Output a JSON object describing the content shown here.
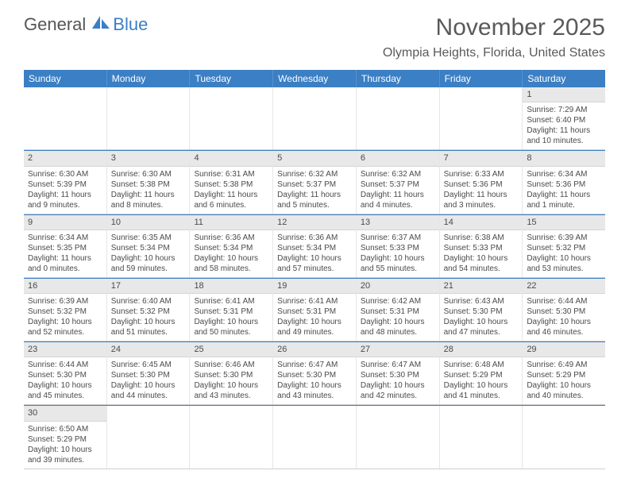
{
  "logo": {
    "word1": "General",
    "word2": "Blue"
  },
  "title": "November 2025",
  "location": "Olympia Heights, Florida, United States",
  "weekdays": [
    "Sunday",
    "Monday",
    "Tuesday",
    "Wednesday",
    "Thursday",
    "Friday",
    "Saturday"
  ],
  "colors": {
    "header_bar": "#3b7fc4",
    "daynum_bg": "#e8e8e8",
    "row_sep": "#3b7fc4",
    "text": "#4a4a4a"
  },
  "weeks": [
    [
      null,
      null,
      null,
      null,
      null,
      null,
      {
        "n": "1",
        "sunrise": "Sunrise: 7:29 AM",
        "sunset": "Sunset: 6:40 PM",
        "daylight": "Daylight: 11 hours and 10 minutes."
      }
    ],
    [
      {
        "n": "2",
        "sunrise": "Sunrise: 6:30 AM",
        "sunset": "Sunset: 5:39 PM",
        "daylight": "Daylight: 11 hours and 9 minutes."
      },
      {
        "n": "3",
        "sunrise": "Sunrise: 6:30 AM",
        "sunset": "Sunset: 5:38 PM",
        "daylight": "Daylight: 11 hours and 8 minutes."
      },
      {
        "n": "4",
        "sunrise": "Sunrise: 6:31 AM",
        "sunset": "Sunset: 5:38 PM",
        "daylight": "Daylight: 11 hours and 6 minutes."
      },
      {
        "n": "5",
        "sunrise": "Sunrise: 6:32 AM",
        "sunset": "Sunset: 5:37 PM",
        "daylight": "Daylight: 11 hours and 5 minutes."
      },
      {
        "n": "6",
        "sunrise": "Sunrise: 6:32 AM",
        "sunset": "Sunset: 5:37 PM",
        "daylight": "Daylight: 11 hours and 4 minutes."
      },
      {
        "n": "7",
        "sunrise": "Sunrise: 6:33 AM",
        "sunset": "Sunset: 5:36 PM",
        "daylight": "Daylight: 11 hours and 3 minutes."
      },
      {
        "n": "8",
        "sunrise": "Sunrise: 6:34 AM",
        "sunset": "Sunset: 5:36 PM",
        "daylight": "Daylight: 11 hours and 1 minute."
      }
    ],
    [
      {
        "n": "9",
        "sunrise": "Sunrise: 6:34 AM",
        "sunset": "Sunset: 5:35 PM",
        "daylight": "Daylight: 11 hours and 0 minutes."
      },
      {
        "n": "10",
        "sunrise": "Sunrise: 6:35 AM",
        "sunset": "Sunset: 5:34 PM",
        "daylight": "Daylight: 10 hours and 59 minutes."
      },
      {
        "n": "11",
        "sunrise": "Sunrise: 6:36 AM",
        "sunset": "Sunset: 5:34 PM",
        "daylight": "Daylight: 10 hours and 58 minutes."
      },
      {
        "n": "12",
        "sunrise": "Sunrise: 6:36 AM",
        "sunset": "Sunset: 5:34 PM",
        "daylight": "Daylight: 10 hours and 57 minutes."
      },
      {
        "n": "13",
        "sunrise": "Sunrise: 6:37 AM",
        "sunset": "Sunset: 5:33 PM",
        "daylight": "Daylight: 10 hours and 55 minutes."
      },
      {
        "n": "14",
        "sunrise": "Sunrise: 6:38 AM",
        "sunset": "Sunset: 5:33 PM",
        "daylight": "Daylight: 10 hours and 54 minutes."
      },
      {
        "n": "15",
        "sunrise": "Sunrise: 6:39 AM",
        "sunset": "Sunset: 5:32 PM",
        "daylight": "Daylight: 10 hours and 53 minutes."
      }
    ],
    [
      {
        "n": "16",
        "sunrise": "Sunrise: 6:39 AM",
        "sunset": "Sunset: 5:32 PM",
        "daylight": "Daylight: 10 hours and 52 minutes."
      },
      {
        "n": "17",
        "sunrise": "Sunrise: 6:40 AM",
        "sunset": "Sunset: 5:32 PM",
        "daylight": "Daylight: 10 hours and 51 minutes."
      },
      {
        "n": "18",
        "sunrise": "Sunrise: 6:41 AM",
        "sunset": "Sunset: 5:31 PM",
        "daylight": "Daylight: 10 hours and 50 minutes."
      },
      {
        "n": "19",
        "sunrise": "Sunrise: 6:41 AM",
        "sunset": "Sunset: 5:31 PM",
        "daylight": "Daylight: 10 hours and 49 minutes."
      },
      {
        "n": "20",
        "sunrise": "Sunrise: 6:42 AM",
        "sunset": "Sunset: 5:31 PM",
        "daylight": "Daylight: 10 hours and 48 minutes."
      },
      {
        "n": "21",
        "sunrise": "Sunrise: 6:43 AM",
        "sunset": "Sunset: 5:30 PM",
        "daylight": "Daylight: 10 hours and 47 minutes."
      },
      {
        "n": "22",
        "sunrise": "Sunrise: 6:44 AM",
        "sunset": "Sunset: 5:30 PM",
        "daylight": "Daylight: 10 hours and 46 minutes."
      }
    ],
    [
      {
        "n": "23",
        "sunrise": "Sunrise: 6:44 AM",
        "sunset": "Sunset: 5:30 PM",
        "daylight": "Daylight: 10 hours and 45 minutes."
      },
      {
        "n": "24",
        "sunrise": "Sunrise: 6:45 AM",
        "sunset": "Sunset: 5:30 PM",
        "daylight": "Daylight: 10 hours and 44 minutes."
      },
      {
        "n": "25",
        "sunrise": "Sunrise: 6:46 AM",
        "sunset": "Sunset: 5:30 PM",
        "daylight": "Daylight: 10 hours and 43 minutes."
      },
      {
        "n": "26",
        "sunrise": "Sunrise: 6:47 AM",
        "sunset": "Sunset: 5:30 PM",
        "daylight": "Daylight: 10 hours and 43 minutes."
      },
      {
        "n": "27",
        "sunrise": "Sunrise: 6:47 AM",
        "sunset": "Sunset: 5:30 PM",
        "daylight": "Daylight: 10 hours and 42 minutes."
      },
      {
        "n": "28",
        "sunrise": "Sunrise: 6:48 AM",
        "sunset": "Sunset: 5:29 PM",
        "daylight": "Daylight: 10 hours and 41 minutes."
      },
      {
        "n": "29",
        "sunrise": "Sunrise: 6:49 AM",
        "sunset": "Sunset: 5:29 PM",
        "daylight": "Daylight: 10 hours and 40 minutes."
      }
    ],
    [
      {
        "n": "30",
        "sunrise": "Sunrise: 6:50 AM",
        "sunset": "Sunset: 5:29 PM",
        "daylight": "Daylight: 10 hours and 39 minutes."
      },
      null,
      null,
      null,
      null,
      null,
      null
    ]
  ]
}
